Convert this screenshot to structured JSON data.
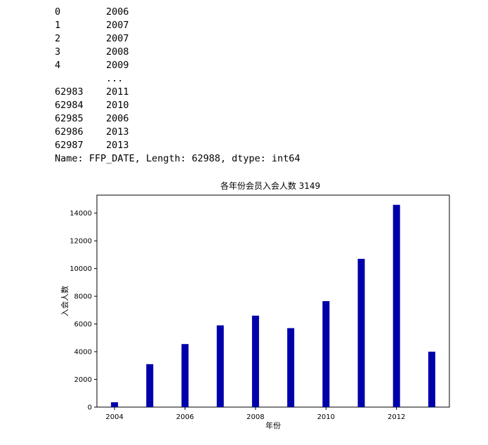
{
  "output": {
    "rows": [
      {
        "index": "0",
        "value": "2006"
      },
      {
        "index": "1",
        "value": "2007"
      },
      {
        "index": "2",
        "value": "2007"
      },
      {
        "index": "3",
        "value": "2008"
      },
      {
        "index": "4",
        "value": "2009"
      },
      {
        "index": "",
        "value": "..."
      },
      {
        "index": "62983",
        "value": "2011"
      },
      {
        "index": "62984",
        "value": "2010"
      },
      {
        "index": "62985",
        "value": "2006"
      },
      {
        "index": "62986",
        "value": "2013"
      },
      {
        "index": "62987",
        "value": "2013"
      }
    ],
    "footer": "Name: FFP_DATE, Length: 62988, dtype: int64"
  },
  "chart_data": {
    "type": "bar",
    "title": "各年份会员入会人数 3149",
    "xlabel": "年份",
    "ylabel": "入会人数",
    "x": [
      2004,
      2005,
      2006,
      2007,
      2008,
      2009,
      2010,
      2011,
      2012,
      2013
    ],
    "values": [
      350,
      3100,
      4550,
      5900,
      6600,
      5700,
      7650,
      10700,
      14600,
      4000
    ],
    "xlim": [
      2003.5,
      2013.5
    ],
    "ylim": [
      0,
      15300
    ],
    "xticks": [
      2004,
      2006,
      2008,
      2010,
      2012
    ],
    "yticks": [
      0,
      2000,
      4000,
      6000,
      8000,
      10000,
      12000,
      14000
    ],
    "bar_color": "#0000aa",
    "grid": false
  }
}
